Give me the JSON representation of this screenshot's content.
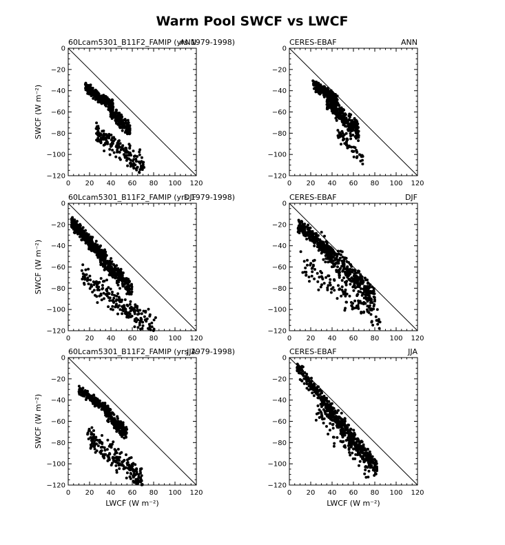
{
  "figure": {
    "title": "Warm Pool SWCF vs LWCF"
  },
  "chart_data": [
    {
      "type": "scatter",
      "left_label": "60Lcam5301_B11F2_FAMIP (yrs 1979-1998)",
      "right_label": "ANN",
      "xlabel": "",
      "ylabel": "SWCF (W m⁻²)",
      "xlim": [
        0,
        120
      ],
      "ylim": [
        -120,
        0
      ],
      "xticks": [
        "0",
        "20",
        "40",
        "60",
        "80",
        "100",
        "120"
      ],
      "yticks": [
        "0",
        "-20",
        "-40",
        "-60",
        "-80",
        "-100",
        "-120"
      ],
      "reference_line": "y = -x",
      "clusters": [
        {
          "x_range": [
            16,
            42
          ],
          "y_center": [
            -36,
            -55
          ],
          "spread_y": 5,
          "count": 260
        },
        {
          "x_range": [
            38,
            58
          ],
          "y_center": [
            -56,
            -78
          ],
          "spread_y": 7,
          "count": 180
        },
        {
          "x_range": [
            26,
            72
          ],
          "y_center": [
            -80,
            -112
          ],
          "spread_y": 10,
          "count": 170
        }
      ]
    },
    {
      "type": "scatter",
      "left_label": "CERES-EBAF",
      "right_label": "ANN",
      "xlabel": "",
      "ylabel": "",
      "xlim": [
        0,
        120
      ],
      "ylim": [
        -120,
        0
      ],
      "xticks": [
        "0",
        "20",
        "40",
        "60",
        "80",
        "100",
        "120"
      ],
      "yticks": [
        "0",
        "-20",
        "-40",
        "-60",
        "-80",
        "-100",
        "-120"
      ],
      "reference_line": "y = -x",
      "clusters": [
        {
          "x_range": [
            22,
            45
          ],
          "y_center": [
            -33,
            -50
          ],
          "spread_y": 5,
          "count": 250
        },
        {
          "x_range": [
            35,
            65
          ],
          "y_center": [
            -48,
            -80
          ],
          "spread_y": 9,
          "count": 260
        },
        {
          "x_range": [
            45,
            70
          ],
          "y_center": [
            -80,
            -105
          ],
          "spread_y": 7,
          "count": 60
        }
      ]
    },
    {
      "type": "scatter",
      "left_label": "60Lcam5301_B11F2_FAMIP (yrs 1979-1998)",
      "right_label": "DJF",
      "xlabel": "",
      "ylabel": "SWCF (W m⁻²)",
      "xlim": [
        0,
        120
      ],
      "ylim": [
        -120,
        0
      ],
      "xticks": [
        "0",
        "20",
        "40",
        "60",
        "80",
        "100",
        "120"
      ],
      "yticks": [
        "0",
        "-20",
        "-40",
        "-60",
        "-80",
        "-100",
        "-120"
      ],
      "reference_line": "y = -x",
      "clusters": [
        {
          "x_range": [
            3,
            35
          ],
          "y_center": [
            -18,
            -52
          ],
          "spread_y": 6,
          "count": 380
        },
        {
          "x_range": [
            30,
            60
          ],
          "y_center": [
            -50,
            -82
          ],
          "spread_y": 8,
          "count": 230
        },
        {
          "x_range": [
            12,
            82
          ],
          "y_center": [
            -70,
            -118
          ],
          "spread_y": 11,
          "count": 200
        }
      ]
    },
    {
      "type": "scatter",
      "left_label": "CERES-EBAF",
      "right_label": "DJF",
      "xlabel": "",
      "ylabel": "",
      "xlim": [
        0,
        120
      ],
      "ylim": [
        -120,
        0
      ],
      "xticks": [
        "0",
        "20",
        "40",
        "60",
        "80",
        "100",
        "120"
      ],
      "yticks": [
        "0",
        "-20",
        "-40",
        "-60",
        "-80",
        "-100",
        "-120"
      ],
      "reference_line": "y = -x",
      "clusters": [
        {
          "x_range": [
            8,
            40
          ],
          "y_center": [
            -20,
            -48
          ],
          "spread_y": 6,
          "count": 230
        },
        {
          "x_range": [
            30,
            80
          ],
          "y_center": [
            -40,
            -90
          ],
          "spread_y": 11,
          "count": 330
        },
        {
          "x_range": [
            10,
            85
          ],
          "y_center": [
            -55,
            -110
          ],
          "spread_y": 12,
          "count": 120
        }
      ]
    },
    {
      "type": "scatter",
      "left_label": "60Lcam5301_B11F2_FAMIP (yrs 1979-1998)",
      "right_label": "JJA",
      "xlabel": "LWCF (W m⁻²)",
      "ylabel": "SWCF (W m⁻²)",
      "xlim": [
        0,
        120
      ],
      "ylim": [
        -120,
        0
      ],
      "xticks": [
        "0",
        "20",
        "40",
        "60",
        "80",
        "100",
        "120"
      ],
      "yticks": [
        "0",
        "-20",
        "-40",
        "-60",
        "-80",
        "-100",
        "-120"
      ],
      "reference_line": "y = -x",
      "clusters": [
        {
          "x_range": [
            10,
            38
          ],
          "y_center": [
            -30,
            -50
          ],
          "spread_y": 4,
          "count": 230
        },
        {
          "x_range": [
            34,
            55
          ],
          "y_center": [
            -50,
            -72
          ],
          "spread_y": 6,
          "count": 180
        },
        {
          "x_range": [
            18,
            70
          ],
          "y_center": [
            -75,
            -115
          ],
          "spread_y": 11,
          "count": 210
        }
      ]
    },
    {
      "type": "scatter",
      "left_label": "CERES-EBAF",
      "right_label": "JJA",
      "xlabel": "LWCF (W m⁻²)",
      "ylabel": "",
      "xlim": [
        0,
        120
      ],
      "ylim": [
        -120,
        0
      ],
      "xticks": [
        "0",
        "20",
        "40",
        "60",
        "80",
        "100",
        "120"
      ],
      "yticks": [
        "0",
        "-20",
        "-40",
        "-60",
        "-80",
        "-100",
        "-120"
      ],
      "reference_line": "y = -x",
      "clusters": [
        {
          "x_range": [
            7,
            40
          ],
          "y_center": [
            -10,
            -50
          ],
          "spread_y": 7,
          "count": 170
        },
        {
          "x_range": [
            35,
            82
          ],
          "y_center": [
            -45,
            -105
          ],
          "spread_y": 8,
          "count": 330
        },
        {
          "x_range": [
            25,
            75
          ],
          "y_center": [
            -50,
            -100
          ],
          "spread_y": 14,
          "count": 120
        }
      ]
    }
  ]
}
